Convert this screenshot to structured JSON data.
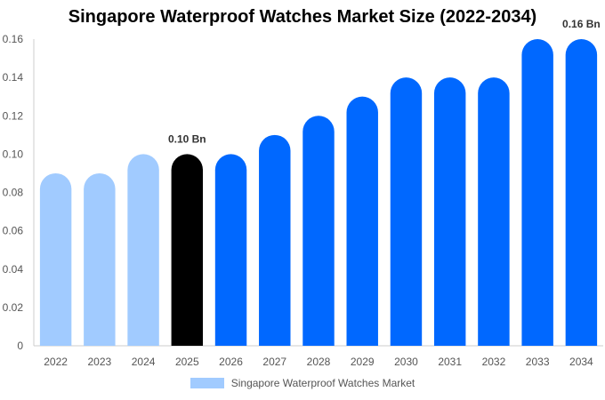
{
  "colors": {
    "historical": "#a1cbff",
    "highlight": "#000000",
    "forecast": "#0068ff",
    "axis_text": "#555555",
    "grid": "#e6e6e6"
  },
  "chart_data": {
    "type": "bar",
    "title": "Singapore Waterproof Watches Market Size (2022-2034)",
    "xlabel": "",
    "ylabel": "",
    "ylim": [
      0,
      0.16
    ],
    "yticks": [
      "0",
      "0.02",
      "0.04",
      "0.06",
      "0.08",
      "0.10",
      "0.12",
      "0.14",
      "0.16"
    ],
    "categories": [
      "2022",
      "2023",
      "2024",
      "2025",
      "2026",
      "2027",
      "2028",
      "2029",
      "2030",
      "2031",
      "2032",
      "2033",
      "2034"
    ],
    "series": [
      {
        "name": "Singapore Waterproof Watches Market",
        "values": [
          0.09,
          0.09,
          0.1,
          0.1,
          0.1,
          0.11,
          0.12,
          0.13,
          0.14,
          0.14,
          0.14,
          0.16,
          0.16
        ]
      }
    ],
    "bar_groups": [
      "historical",
      "historical",
      "historical",
      "highlight",
      "forecast",
      "forecast",
      "forecast",
      "forecast",
      "forecast",
      "forecast",
      "forecast",
      "forecast",
      "forecast"
    ],
    "data_labels": [
      {
        "category": "2025",
        "text": "0.10 Bn"
      },
      {
        "category": "2034",
        "text": "0.16 Bn"
      }
    ],
    "legend": {
      "label": "Singapore Waterproof Watches Market",
      "position": "bottom"
    },
    "grid": false
  }
}
